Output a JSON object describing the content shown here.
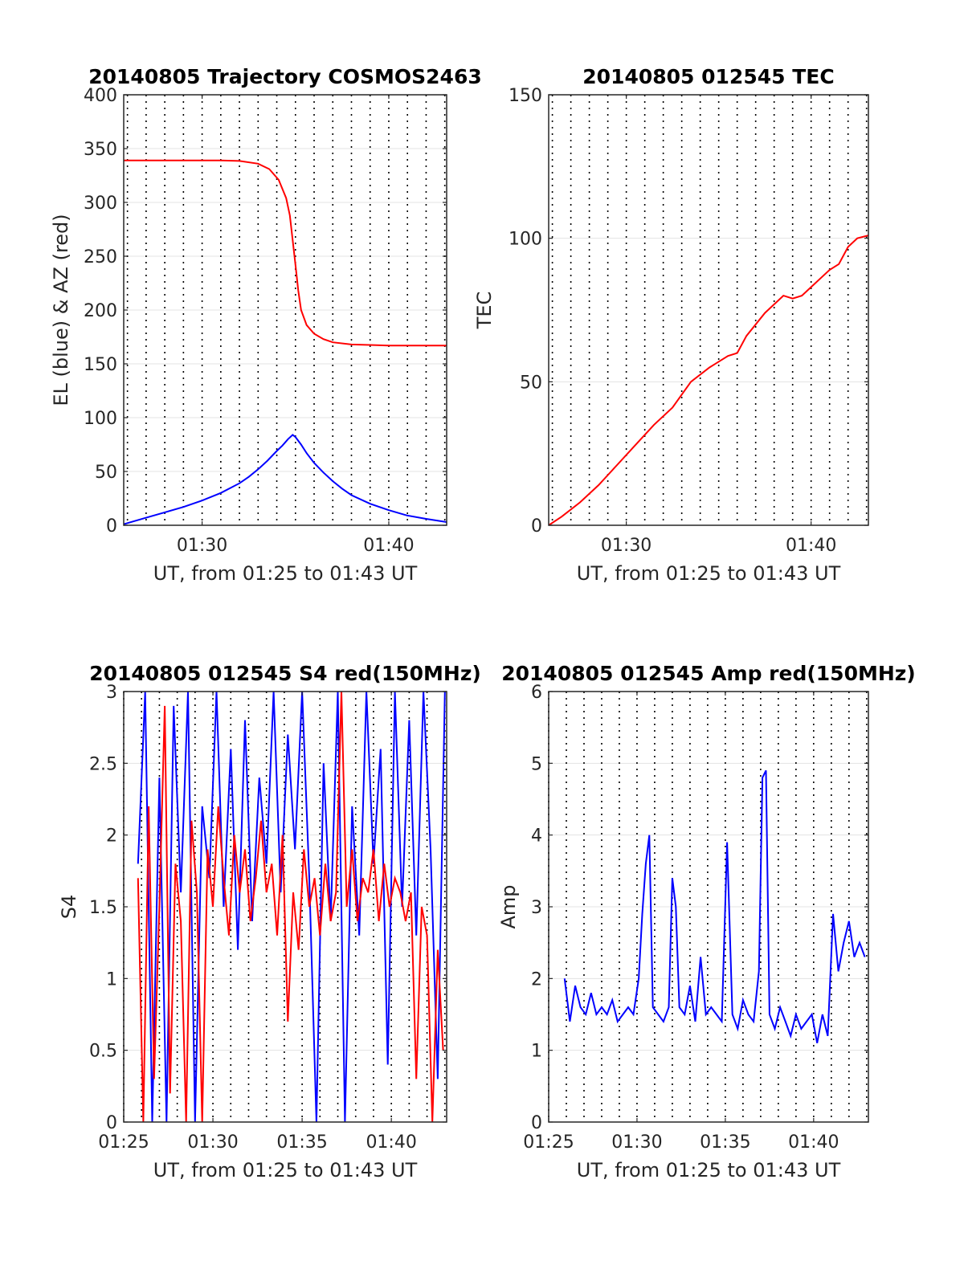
{
  "chart_data": [
    {
      "type": "line",
      "title": "20140805 Trajectory COSMOS2463",
      "xlabel": "UT, from 01:25 to 01:43 UT",
      "ylabel": "EL (blue) & AZ (red)",
      "x_unit": "minutes after 01:00 UT",
      "xlim": [
        25.8,
        43.1
      ],
      "ylim": [
        0,
        400
      ],
      "yticks": [
        0,
        50,
        100,
        150,
        200,
        250,
        300,
        350,
        400
      ],
      "xtick_labels": [
        {
          "x": 30,
          "label": "01:30"
        },
        {
          "x": 40,
          "label": "01:40"
        }
      ],
      "x_minor_dotted_every_min": 1,
      "grid": true,
      "series": [
        {
          "color": "#ff0000",
          "x": [
            25.8,
            27,
            28,
            29,
            30,
            31,
            32,
            33,
            33.6,
            34.1,
            34.5,
            34.7,
            34.85,
            35,
            35.15,
            35.3,
            35.6,
            36,
            36.5,
            37,
            38,
            39,
            40,
            41,
            42,
            43.1
          ],
          "y": [
            339,
            339,
            339,
            339,
            339,
            339,
            338.5,
            336,
            331,
            321,
            304,
            288,
            265,
            242,
            218,
            200,
            186,
            178,
            173,
            170,
            168,
            167.5,
            167,
            167,
            167,
            167
          ]
        },
        {
          "color": "#0000ff",
          "x": [
            25.8,
            26,
            27,
            28,
            29,
            30,
            31,
            32,
            32.5,
            33,
            33.5,
            34,
            34.3,
            34.6,
            34.85,
            35,
            35.3,
            35.6,
            36,
            36.5,
            37,
            37.5,
            38,
            39,
            40,
            41,
            42,
            43.1
          ],
          "y": [
            1,
            2,
            7,
            12,
            17,
            23,
            30,
            39,
            45,
            52,
            60,
            69,
            74,
            80,
            84,
            82,
            75,
            67,
            58,
            49,
            41,
            34,
            28,
            20,
            14,
            9,
            6,
            3
          ]
        }
      ]
    },
    {
      "type": "line",
      "title": "20140805 012545 TEC",
      "xlabel": "UT, from 01:25 to 01:43 UT",
      "ylabel": "TEC",
      "x_unit": "minutes after 01:00 UT",
      "xlim": [
        25.8,
        43.1
      ],
      "ylim": [
        0,
        150
      ],
      "yticks": [
        0,
        50,
        100,
        150
      ],
      "xtick_labels": [
        {
          "x": 30,
          "label": "01:30"
        },
        {
          "x": 40,
          "label": "01:40"
        }
      ],
      "x_minor_dotted_every_min": 1,
      "grid": true,
      "series": [
        {
          "color": "#ff0000",
          "x": [
            25.8,
            26.5,
            27.5,
            28.5,
            29.5,
            30.5,
            31.5,
            32.5,
            33.5,
            34.5,
            35,
            35.5,
            36,
            36.5,
            37.5,
            38.5,
            39,
            39.5,
            40,
            40.5,
            41,
            41.5,
            42,
            42.5,
            43.1
          ],
          "y": [
            0,
            3,
            8,
            14,
            21,
            28,
            35,
            41,
            50,
            55,
            57,
            59,
            60,
            66,
            74,
            80,
            79,
            80,
            83,
            86,
            89,
            91,
            97,
            100,
            101
          ]
        }
      ]
    },
    {
      "type": "line",
      "title": "20140805 012545 S4 red(150MHz)",
      "xlabel": "UT, from 01:25 to 01:43 UT",
      "ylabel": "S4",
      "x_unit": "minutes after 01:00 UT",
      "xlim": [
        25,
        43.1
      ],
      "ylim": [
        0,
        3
      ],
      "yticks": [
        0,
        0.5,
        1,
        1.5,
        2,
        2.5,
        3
      ],
      "ytick_labels": [
        "0",
        "0.5",
        "1",
        "1.5",
        "2",
        "2.5",
        "3"
      ],
      "xtick_labels": [
        {
          "x": 25,
          "label": "01:25"
        },
        {
          "x": 30,
          "label": "01:30"
        },
        {
          "x": 35,
          "label": "01:35"
        },
        {
          "x": 40,
          "label": "01:40"
        }
      ],
      "x_minor_dotted_every_min": 1,
      "grid": true,
      "series": [
        {
          "color": "#0000ff",
          "x": [
            25.8,
            26.2,
            26.6,
            27,
            27.4,
            27.8,
            28.2,
            28.6,
            29,
            29.4,
            29.8,
            30.2,
            30.6,
            31,
            31.4,
            31.8,
            32.2,
            32.6,
            33,
            33.4,
            33.8,
            34.2,
            34.6,
            35,
            35.4,
            35.8,
            36.2,
            36.6,
            37,
            37.4,
            37.8,
            38.2,
            38.6,
            39,
            39.4,
            39.8,
            40.2,
            40.6,
            41,
            41.4,
            41.8,
            42.2,
            42.6,
            43
          ],
          "y": [
            1.8,
            3,
            0,
            2.4,
            0,
            2.9,
            1.6,
            3,
            0,
            2.2,
            1.7,
            3,
            1.5,
            2.6,
            1.2,
            2.8,
            1.4,
            2.4,
            1.8,
            3,
            1.6,
            2.7,
            1.9,
            3,
            1.7,
            0,
            2.5,
            1.4,
            3,
            0,
            2.2,
            1.3,
            3,
            1.8,
            2.6,
            0.4,
            3,
            1.5,
            2.8,
            1.3,
            3,
            1.9,
            0.3,
            3
          ]
        },
        {
          "color": "#ff0000",
          "x": [
            25.8,
            26.1,
            26.4,
            26.7,
            27,
            27.3,
            27.6,
            27.9,
            28.2,
            28.5,
            28.8,
            29.1,
            29.4,
            29.7,
            30,
            30.3,
            30.6,
            30.9,
            31.2,
            31.5,
            31.8,
            32.1,
            32.4,
            32.7,
            33,
            33.3,
            33.6,
            33.9,
            34.2,
            34.5,
            34.8,
            35.1,
            35.4,
            35.7,
            36,
            36.3,
            36.6,
            36.9,
            37.2,
            37.5,
            37.8,
            38.1,
            38.4,
            38.7,
            39,
            39.3,
            39.6,
            39.9,
            40.2,
            40.5,
            40.8,
            41.1,
            41.4,
            41.7,
            42,
            42.3,
            42.6,
            42.9
          ],
          "y": [
            1.7,
            0,
            2.2,
            0.3,
            1.5,
            2.9,
            0.2,
            1.8,
            1.4,
            0,
            2.1,
            1.6,
            0,
            1.9,
            1.5,
            2.2,
            1.7,
            1.3,
            2,
            1.6,
            1.9,
            1.4,
            1.7,
            2.1,
            1.6,
            1.8,
            1.3,
            2,
            0.7,
            1.6,
            1.2,
            1.9,
            1.5,
            1.7,
            1.3,
            1.8,
            1.4,
            1.6,
            3,
            1.5,
            1.9,
            1.4,
            1.7,
            1.6,
            1.9,
            1.4,
            1.8,
            1.5,
            1.7,
            1.6,
            1.4,
            1.6,
            0.3,
            1.5,
            1.3,
            0,
            1.2,
            0.5
          ]
        }
      ]
    },
    {
      "type": "line",
      "title": "20140805 012545 Amp red(150MHz)",
      "xlabel": "UT, from 01:25 to 01:43 UT",
      "ylabel": "Amp",
      "x_unit": "minutes after 01:00 UT",
      "xlim": [
        25,
        43.1
      ],
      "ylim": [
        0,
        6
      ],
      "yticks": [
        0,
        1,
        2,
        3,
        4,
        5,
        6
      ],
      "xtick_labels": [
        {
          "x": 25,
          "label": "01:25"
        },
        {
          "x": 30,
          "label": "01:30"
        },
        {
          "x": 35,
          "label": "01:35"
        },
        {
          "x": 40,
          "label": "01:40"
        }
      ],
      "x_minor_dotted_every_min": 1,
      "grid": true,
      "series": [
        {
          "color": "#0000ff",
          "x": [
            25.9,
            26.2,
            26.5,
            26.8,
            27.1,
            27.4,
            27.7,
            28,
            28.3,
            28.6,
            28.9,
            29.2,
            29.5,
            29.8,
            30.1,
            30.3,
            30.5,
            30.7,
            30.9,
            31.2,
            31.5,
            31.8,
            32,
            32.2,
            32.4,
            32.7,
            33,
            33.3,
            33.6,
            33.9,
            34.2,
            34.5,
            34.8,
            35.1,
            35.4,
            35.7,
            36,
            36.3,
            36.6,
            36.9,
            37.1,
            37.3,
            37.5,
            37.8,
            38.1,
            38.4,
            38.7,
            39,
            39.3,
            39.6,
            39.9,
            40.2,
            40.5,
            40.8,
            41.1,
            41.4,
            41.7,
            42,
            42.3,
            42.6,
            42.9
          ],
          "y": [
            2,
            1.4,
            1.9,
            1.6,
            1.5,
            1.8,
            1.5,
            1.6,
            1.5,
            1.7,
            1.4,
            1.5,
            1.6,
            1.5,
            2,
            2.9,
            3.6,
            4,
            1.6,
            1.5,
            1.4,
            1.6,
            3.4,
            3,
            1.6,
            1.5,
            1.9,
            1.4,
            2.3,
            1.5,
            1.6,
            1.5,
            1.4,
            3.9,
            1.5,
            1.3,
            1.7,
            1.5,
            1.4,
            2.1,
            4.8,
            4.9,
            1.5,
            1.3,
            1.6,
            1.4,
            1.2,
            1.5,
            1.3,
            1.4,
            1.5,
            1.1,
            1.5,
            1.2,
            2.9,
            2.1,
            2.5,
            2.8,
            2.3,
            2.5,
            2.3
          ]
        }
      ]
    }
  ]
}
